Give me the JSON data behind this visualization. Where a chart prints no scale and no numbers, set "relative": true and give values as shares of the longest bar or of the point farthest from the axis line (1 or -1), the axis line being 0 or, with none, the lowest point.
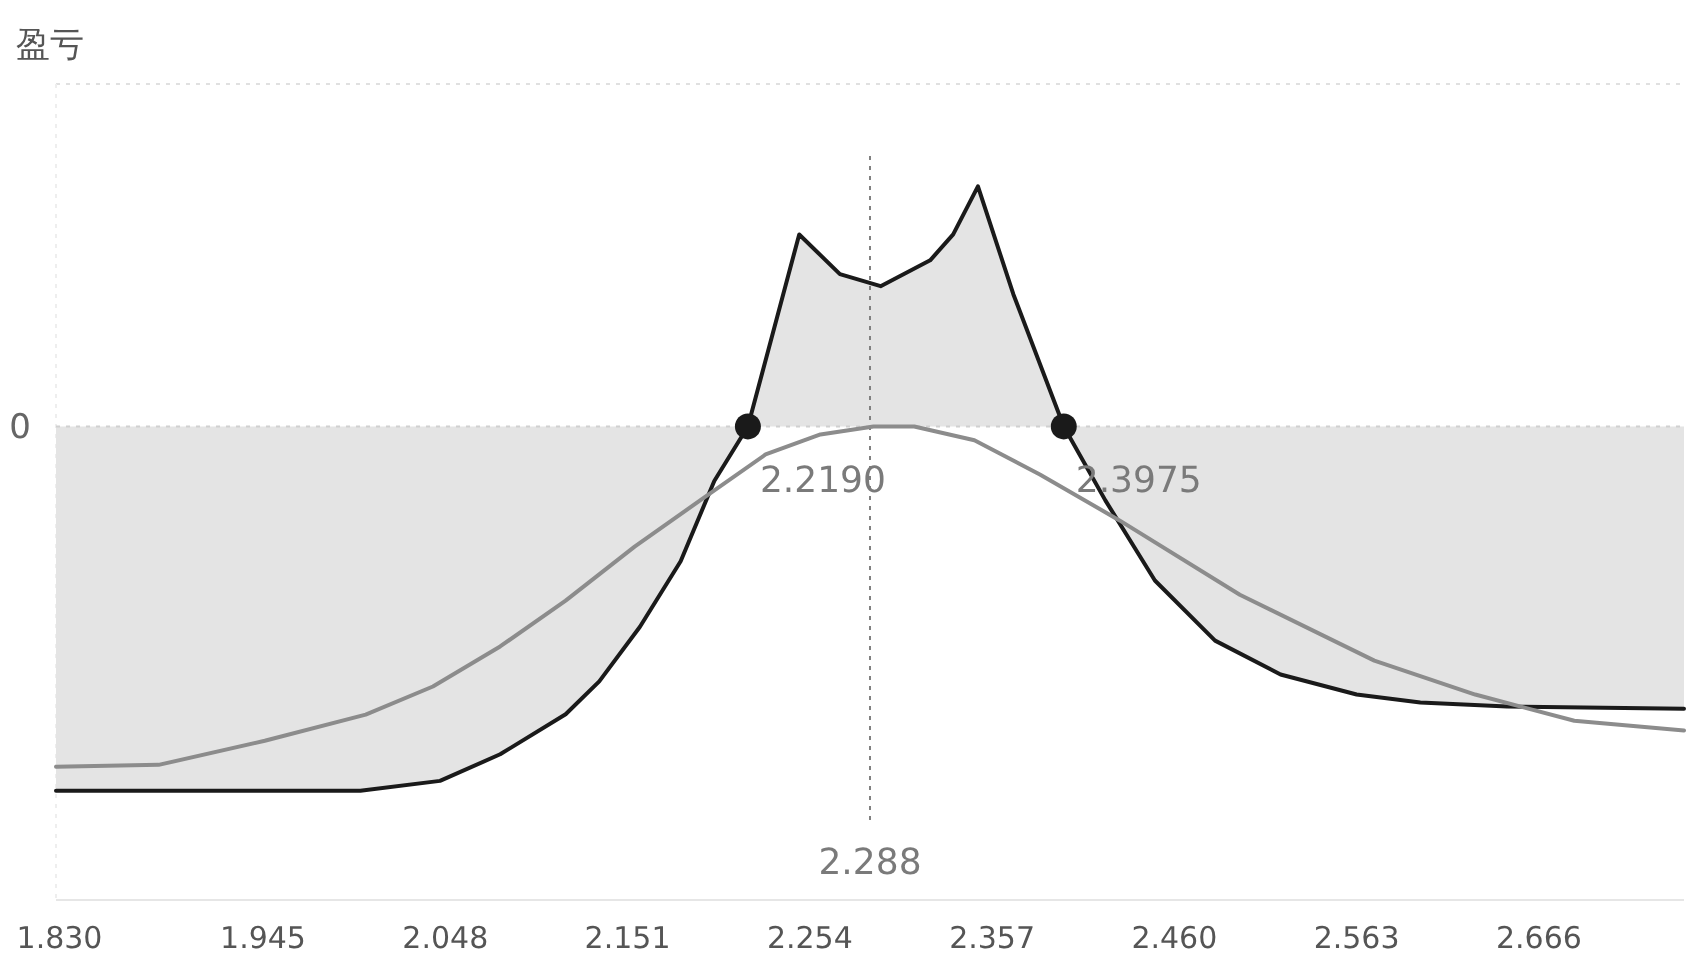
{
  "chart_data": {
    "type": "line",
    "relative": true,
    "ylabel": "盈亏",
    "xlim": [
      1.828,
      2.748
    ],
    "xticks": [
      {
        "value": 1.83,
        "label": "1.830"
      },
      1.945,
      2.048,
      2.151,
      2.254,
      2.357,
      {
        "value": 2.46,
        "label": "2.460"
      },
      2.563,
      2.666
    ],
    "series": [
      {
        "type": "area",
        "color": "#1a1a1a",
        "x": [
          1.828,
          2.0,
          2.045,
          2.079,
          2.116,
          2.135,
          2.158,
          2.181,
          2.2,
          2.219,
          2.248,
          2.271,
          2.294,
          2.322,
          2.335,
          2.349,
          2.369,
          2.3975,
          2.421,
          2.449,
          2.483,
          2.52,
          2.563,
          2.599,
          2.648,
          2.748
        ],
        "values": [
          -1,
          -1,
          -0.973,
          -0.9,
          -0.79,
          -0.7,
          -0.55,
          -0.37,
          -0.15,
          0,
          0.527,
          0.418,
          0.385,
          0.456,
          0.527,
          0.659,
          0.363,
          0,
          -0.203,
          -0.423,
          -0.588,
          -0.681,
          -0.736,
          -0.758,
          -0.769,
          -0.775
        ]
      },
      {
        "color": "#8c8c8c",
        "x": [
          1.828,
          1.886,
          1.946,
          2.003,
          2.041,
          2.079,
          2.116,
          2.155,
          2.192,
          2.229,
          2.26,
          2.29,
          2.313,
          2.347,
          2.384,
          2.429,
          2.497,
          2.573,
          2.63,
          2.686,
          2.748
        ],
        "values": [
          -0.934,
          -0.929,
          -0.863,
          -0.791,
          -0.714,
          -0.604,
          -0.478,
          -0.33,
          -0.203,
          -0.077,
          -0.022,
          0,
          0,
          -0.038,
          -0.132,
          -0.258,
          -0.462,
          -0.643,
          -0.736,
          -0.808,
          -0.835
        ]
      },
      {
        "type": "scatter",
        "color": "#1a1a1a",
        "marker": "circle",
        "x": [
          2.219,
          2.3975
        ],
        "values": [
          0,
          0
        ]
      }
    ],
    "annotations": [
      {
        "text": "2.2190",
        "x": 2.219,
        "y": 0
      },
      {
        "text": "2.3975",
        "x": 2.3975,
        "y": 0
      }
    ],
    "ref_lines": [
      {
        "axis": "y",
        "value": 0,
        "label": "0",
        "line_style": "dotted",
        "color": "#d0d0d0"
      },
      {
        "axis": "x",
        "value": 2.288,
        "label": "2.288",
        "line_style": "dotted",
        "color": "#808080"
      }
    ]
  }
}
